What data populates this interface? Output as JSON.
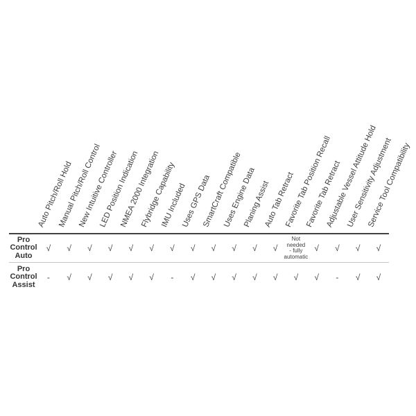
{
  "colors": {
    "background": "#ffffff",
    "text": "#3d3d3d",
    "row_label_text": "#333333",
    "header_rule": "#414141",
    "row_divider": "#c4c4c4"
  },
  "glyphs": {
    "check": "√",
    "dash": "-"
  },
  "chart_data": {
    "type": "table",
    "description_visible": false,
    "columns": [
      "Auto Pitch/Roll Hold",
      "Manual Pitch/Roll Control",
      "New Intuitive Controller",
      "LED Position Indication",
      "NMEA 2000 Integration",
      "Flybridge Capability",
      "IMU Included",
      "Uses GPS Data",
      "SmartCraft Compatible",
      "Uses Engine Data",
      "Planing Assist",
      "Auto Tab Retract",
      "Favorite Tab Position Recall",
      "Favorite Tab Retract",
      "Adjustable Vessel Attitude Hold",
      "User Sensitivity Adjustment",
      "Service Tool Compatibility"
    ],
    "rows": [
      {
        "label": "Pro Control Auto",
        "values": [
          "√",
          "√",
          "√",
          "√",
          "√",
          "√",
          "√",
          "√",
          "√",
          "√",
          "√",
          "√",
          "Not\nneeded\n- fully\nautomatic",
          "√",
          "√",
          "√",
          "√"
        ]
      },
      {
        "label": "Pro Control Assist",
        "values": [
          "-",
          "√",
          "√",
          "√",
          "√",
          "√",
          "-",
          "√",
          "√",
          "√",
          "√",
          "√",
          "√",
          "√",
          "-",
          "√",
          "√"
        ]
      }
    ],
    "layout_hints": {
      "header_rotation_deg": 66,
      "grid": "off",
      "legend": "none"
    }
  }
}
